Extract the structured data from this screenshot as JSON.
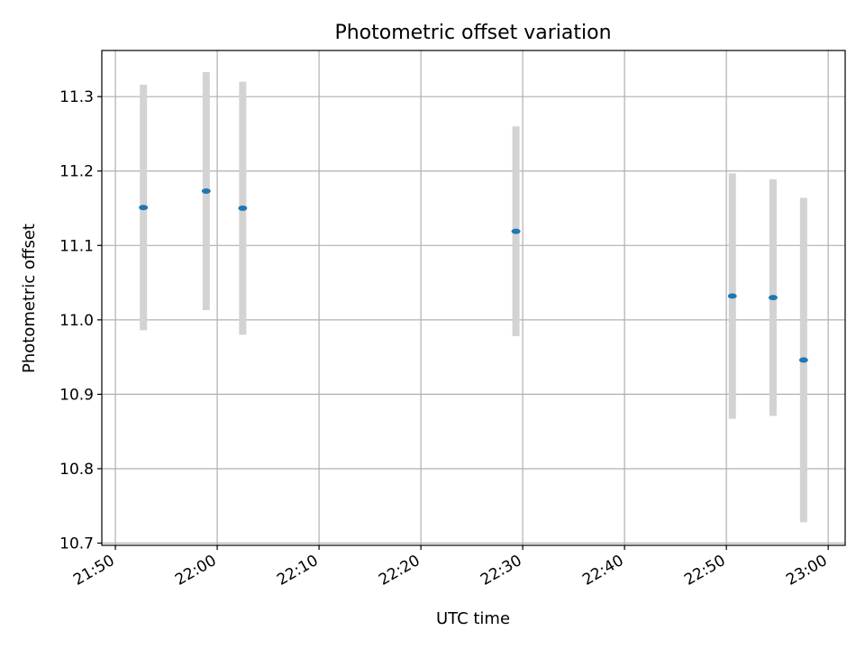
{
  "chart_data": {
    "type": "scatter",
    "title": "Photometric offset variation",
    "xlabel": "UTC time",
    "ylabel": "Photometric offset",
    "xlim": [
      "21:48:40",
      "23:01:40"
    ],
    "ylim": [
      10.697,
      11.362
    ],
    "x_ticks": [
      "21:50",
      "22:00",
      "22:10",
      "22:20",
      "22:30",
      "22:40",
      "22:50",
      "23:00"
    ],
    "y_ticks": [
      "10.7",
      "10.8",
      "10.9",
      "11.0",
      "11.1",
      "11.2",
      "11.3"
    ],
    "grid": true,
    "colors": {
      "points": "#1f77b4",
      "errorbars": "#d3d3d3",
      "grid": "#b0b0b0",
      "axes": "#000000"
    },
    "series": [
      {
        "points": [
          {
            "x": "21:52:45",
            "y": 11.151,
            "ylow": 10.986,
            "yhigh": 11.316
          },
          {
            "x": "21:58:55",
            "y": 11.173,
            "ylow": 11.013,
            "yhigh": 11.333
          },
          {
            "x": "22:02:30",
            "y": 11.15,
            "ylow": 10.98,
            "yhigh": 11.32
          },
          {
            "x": "22:29:20",
            "y": 11.119,
            "ylow": 10.978,
            "yhigh": 11.26
          },
          {
            "x": "22:50:35",
            "y": 11.032,
            "ylow": 10.867,
            "yhigh": 11.197
          },
          {
            "x": "22:54:35",
            "y": 11.03,
            "ylow": 10.871,
            "yhigh": 11.189
          },
          {
            "x": "22:57:35",
            "y": 10.946,
            "ylow": 10.728,
            "yhigh": 11.164
          }
        ]
      }
    ]
  }
}
